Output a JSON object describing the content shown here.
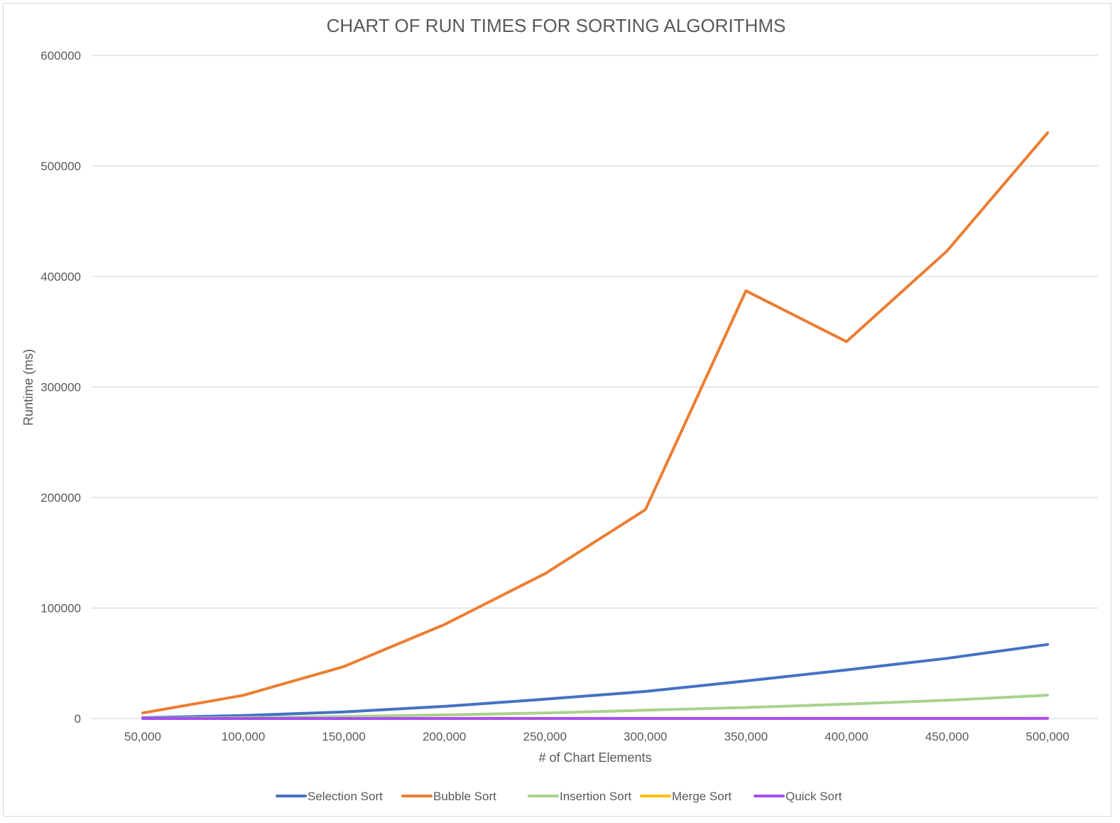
{
  "chart_data": {
    "type": "line",
    "title": "CHART OF RUN TIMES FOR SORTING ALGORITHMS",
    "xlabel": "# of Chart Elements",
    "ylabel": "Runtime (ms)",
    "categories": [
      "50,000",
      "100,000",
      "150,000",
      "200,000",
      "250,000",
      "300,000",
      "350,000",
      "400,000",
      "450,000",
      "500,000"
    ],
    "yticks": [
      "0",
      "100000",
      "200000",
      "300000",
      "400000",
      "500000",
      "600000"
    ],
    "ylim": [
      0,
      600000
    ],
    "grid": true,
    "legend_position": "bottom",
    "series": [
      {
        "name": "Selection Sort",
        "color": "#4472C4",
        "values": [
          700,
          2700,
          6000,
          11000,
          17500,
          24500,
          34000,
          44000,
          54500,
          67000
        ]
      },
      {
        "name": "Bubble Sort",
        "color": "#ED7D31",
        "values": [
          5000,
          21000,
          47000,
          85000,
          131000,
          189000,
          387000,
          341000,
          423000,
          530000
        ]
      },
      {
        "name": "Insertion Sort",
        "color": "#A9D18E",
        "values": [
          200,
          800,
          1800,
          3300,
          5000,
          7500,
          10000,
          13000,
          16500,
          21000
        ]
      },
      {
        "name": "Merge Sort",
        "color": "#FFC000",
        "values": [
          10,
          20,
          30,
          40,
          50,
          60,
          70,
          80,
          90,
          100
        ]
      },
      {
        "name": "Quick Sort",
        "color": "#A64DF2",
        "values": [
          10,
          20,
          30,
          40,
          50,
          60,
          70,
          80,
          90,
          100
        ]
      }
    ]
  }
}
